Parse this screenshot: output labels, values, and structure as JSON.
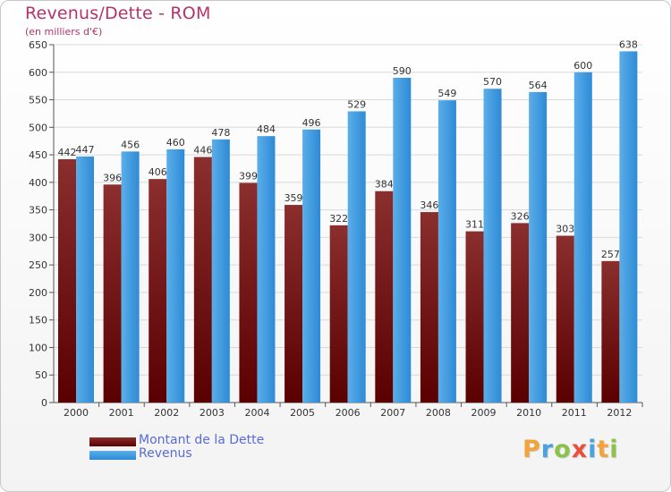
{
  "chart_data": {
    "type": "bar",
    "title": "Revenus/Dette - ROM",
    "subtitle": "(en milliers d'€)",
    "categories": [
      "2000",
      "2001",
      "2002",
      "2003",
      "2004",
      "2005",
      "2006",
      "2007",
      "2008",
      "2009",
      "2010",
      "2011",
      "2012"
    ],
    "series": [
      {
        "name": "Montant de la Dette",
        "color": "#7a1a1a",
        "values": [
          442,
          396,
          406,
          446,
          399,
          359,
          322,
          384,
          346,
          311,
          326,
          303,
          257
        ]
      },
      {
        "name": "Revenus",
        "color": "#3d99e0",
        "values": [
          447,
          456,
          460,
          478,
          484,
          496,
          529,
          590,
          549,
          570,
          564,
          600,
          638
        ]
      }
    ],
    "ylim": [
      0,
      650
    ],
    "yticks": [
      0,
      50,
      100,
      150,
      200,
      250,
      300,
      350,
      400,
      450,
      500,
      550,
      600,
      650
    ],
    "grid": true,
    "legend_position": "bottom-left"
  },
  "logo": {
    "text": "Proxiti",
    "letters": [
      {
        "char": "P",
        "color": "#f2a33a"
      },
      {
        "char": "r",
        "color": "#4aa3df"
      },
      {
        "char": "o",
        "color": "#8bc34a"
      },
      {
        "char": "x",
        "color": "#e94f3d"
      },
      {
        "char": "i",
        "color": "#4aa3df"
      },
      {
        "char": "t",
        "color": "#f2a33a"
      },
      {
        "char": "i",
        "color": "#8bc34a"
      }
    ]
  }
}
